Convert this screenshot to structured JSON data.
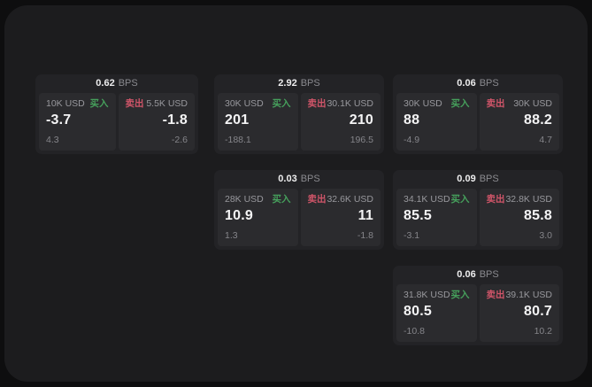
{
  "labels": {
    "bps_suffix": "BPS",
    "buy": "买入",
    "sell": "卖出"
  },
  "colors": {
    "buy_green": "#46a05c",
    "sell_red": "#d05569",
    "surface": "#1c1c1e",
    "card": "#232326",
    "panel": "#2b2b2e"
  },
  "cards": [
    {
      "bps": "0.62",
      "col": 1,
      "row": 1,
      "buy": {
        "amount": "10K USD",
        "value": "-3.7",
        "sub": "4.3"
      },
      "sell": {
        "amount": "5.5K USD",
        "value": "-1.8",
        "sub": "-2.6"
      }
    },
    {
      "bps": "2.92",
      "col": 2,
      "row": 1,
      "buy": {
        "amount": "30K USD",
        "value": "201",
        "sub": "-188.1"
      },
      "sell": {
        "amount": "30.1K USD",
        "value": "210",
        "sub": "196.5"
      }
    },
    {
      "bps": "0.06",
      "col": 3,
      "row": 1,
      "buy": {
        "amount": "30K USD",
        "value": "88",
        "sub": "-4.9"
      },
      "sell": {
        "amount": "30K USD",
        "value": "88.2",
        "sub": "4.7"
      }
    },
    {
      "bps": "0.03",
      "col": 2,
      "row": 2,
      "buy": {
        "amount": "28K USD",
        "value": "10.9",
        "sub": "1.3"
      },
      "sell": {
        "amount": "32.6K USD",
        "value": "11",
        "sub": "-1.8"
      }
    },
    {
      "bps": "0.09",
      "col": 3,
      "row": 2,
      "buy": {
        "amount": "34.1K USD",
        "value": "85.5",
        "sub": "-3.1"
      },
      "sell": {
        "amount": "32.8K USD",
        "value": "85.8",
        "sub": "3.0"
      }
    },
    {
      "bps": "0.06",
      "col": 3,
      "row": 3,
      "buy": {
        "amount": "31.8K USD",
        "value": "80.5",
        "sub": "-10.8"
      },
      "sell": {
        "amount": "39.1K USD",
        "value": "80.7",
        "sub": "10.2"
      }
    }
  ]
}
